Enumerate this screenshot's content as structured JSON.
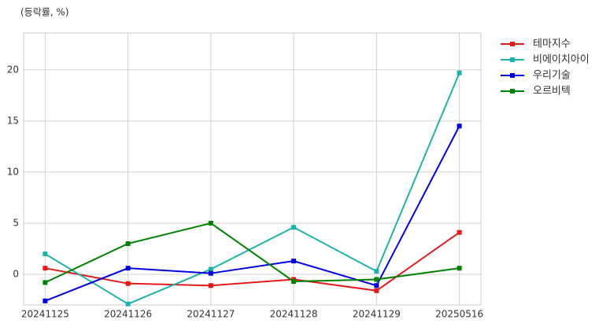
{
  "chart_data": {
    "type": "line",
    "y_label": "(등락률, %)",
    "categories": [
      "20241125",
      "20241126",
      "20241127",
      "20241128",
      "20241129",
      "20250516"
    ],
    "series": [
      {
        "name": "테마지수",
        "color": "#e31a1c",
        "values": [
          0.6,
          -0.9,
          -1.1,
          -0.5,
          -1.6,
          4.1
        ]
      },
      {
        "name": "비에이치아이",
        "color": "#20b2aa",
        "values": [
          2.0,
          -2.9,
          0.5,
          4.6,
          0.3,
          19.7
        ]
      },
      {
        "name": "우리기술",
        "color": "#0000dd",
        "values": [
          -2.6,
          0.6,
          0.1,
          1.3,
          -1.1,
          14.5
        ]
      },
      {
        "name": "오르비텍",
        "color": "#008000",
        "values": [
          -0.8,
          3.0,
          5.0,
          -0.7,
          -0.5,
          0.6
        ]
      }
    ],
    "ylim": [
      -3,
      23.6
    ],
    "yticks": [
      0,
      5,
      10,
      15,
      20
    ],
    "grid": true,
    "legend": "outside right"
  }
}
